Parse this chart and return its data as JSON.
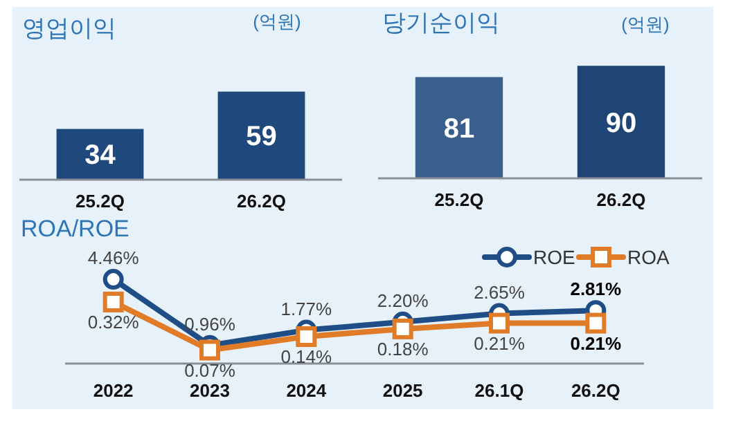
{
  "chart_data": [
    {
      "type": "bar",
      "title": "영업이익",
      "annotations": [
        "(억원)"
      ],
      "categories": [
        "25.2Q",
        "26.2Q"
      ],
      "values": [
        34,
        59
      ],
      "colors": [
        "#1f497d",
        "#1f497d"
      ],
      "data_labels": true,
      "tick_labels": "x"
    },
    {
      "type": "bar",
      "title": "당기순이익",
      "annotations": [
        "(억원)"
      ],
      "categories": [
        "25.2Q",
        "26.2Q"
      ],
      "values": [
        81,
        90
      ],
      "colors": [
        "#3b5f8c",
        "#1f4577"
      ],
      "data_labels": true,
      "tick_labels": "x"
    },
    {
      "type": "line",
      "title": "ROA/ROE",
      "categories": [
        "2022",
        "2023",
        "2024",
        "2025",
        "26.1Q",
        "26.2Q"
      ],
      "series": [
        {
          "name": "ROE",
          "color": "#1f4e86",
          "marker": "circle",
          "values": [
            4.46,
            0.96,
            1.77,
            2.2,
            2.65,
            2.81
          ],
          "value_labels": [
            "4.46%",
            "0.96%",
            "1.77%",
            "2.20%",
            "2.65%",
            "2.81%"
          ]
        },
        {
          "name": "ROA",
          "color": "#e07b28",
          "marker": "square",
          "axis": "y2",
          "values": [
            0.32,
            0.07,
            0.14,
            0.18,
            0.21,
            0.21
          ],
          "value_labels": [
            "0.32%",
            "0.07%",
            "0.14%",
            "0.18%",
            "0.21%",
            "0.21%"
          ]
        }
      ],
      "legend": "top right",
      "tick_labels": "x"
    }
  ]
}
